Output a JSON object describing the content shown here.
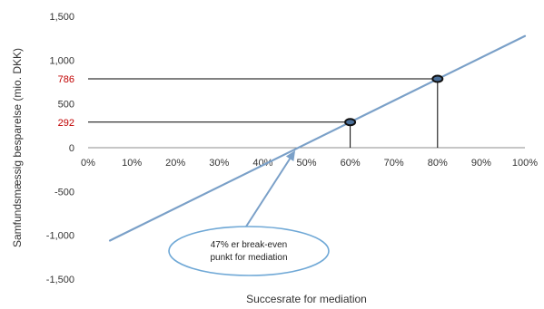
{
  "chart_data": {
    "type": "line",
    "title": "",
    "xlabel": "Succesrate for mediation",
    "ylabel": "Samfundsmæssig besparelse (mio. DKK)",
    "xlim": [
      0,
      100
    ],
    "ylim": [
      -1500,
      1500
    ],
    "x_ticks": [
      "0%",
      "10%",
      "20%",
      "30%",
      "40%",
      "50%",
      "60%",
      "70%",
      "80%",
      "90%",
      "100%"
    ],
    "y_ticks": [
      "1,500",
      "1,000",
      "500",
      "0",
      "-500",
      "-1,000",
      "-1,500"
    ],
    "y_tick_values": [
      1500,
      1000,
      500,
      0,
      -500,
      -1000,
      -1500
    ],
    "series": [
      {
        "x": [
          5,
          100
        ],
        "y": [
          -1060,
          1275
        ],
        "color": "#7aa0c8"
      }
    ],
    "highlight_points": [
      {
        "x": 60,
        "y": 292,
        "label": "292"
      },
      {
        "x": 80,
        "y": 786,
        "label": "786"
      }
    ],
    "highlight_label_color": "#c00000",
    "annotation": {
      "lines": [
        "47% er break-even",
        "punkt for mediation"
      ],
      "target_x": 47,
      "target_y": 0,
      "border_color": "#6fa8d6",
      "arrow_color": "#7aa0c8"
    },
    "grid": false,
    "legend": "none"
  }
}
